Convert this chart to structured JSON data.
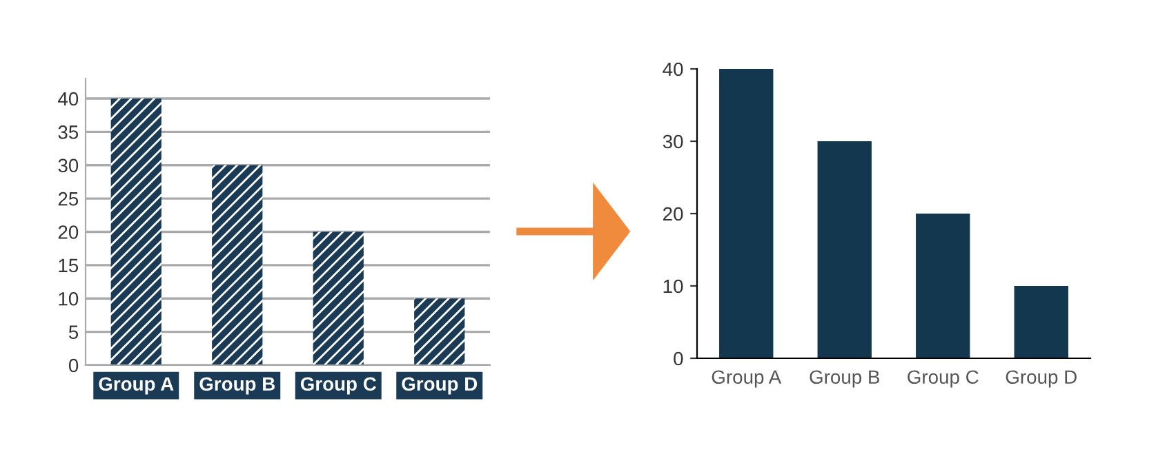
{
  "chart_data": [
    {
      "type": "bar",
      "categories": [
        "Group A",
        "Group B",
        "Group C",
        "Group D"
      ],
      "values": [
        40,
        30,
        20,
        10
      ],
      "color": "#1a3a55",
      "ylim": [
        0,
        43
      ],
      "yticks": [
        0,
        5,
        10,
        15,
        20,
        25,
        30,
        35,
        40
      ],
      "grid": "y"
    },
    {
      "type": "bar",
      "categories": [
        "Group A",
        "Group B",
        "Group C",
        "Group D"
      ],
      "values": [
        40,
        30,
        20,
        10
      ],
      "color": "#12374f",
      "ylim": [
        0,
        40
      ],
      "yticks": [
        0,
        10,
        20,
        30,
        40
      ],
      "grid": false
    }
  ]
}
